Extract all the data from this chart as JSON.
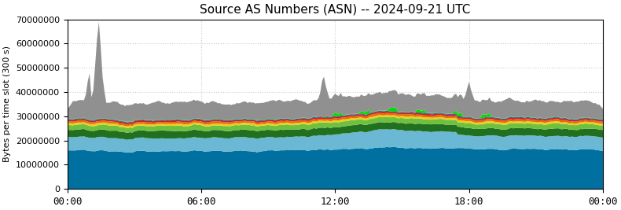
{
  "title": "Source AS Numbers (ASN) -- 2024-09-21 UTC",
  "ylabel": "Bytes per time slot (300 s)",
  "xlim": [
    0,
    288
  ],
  "ylim": [
    0,
    70000000
  ],
  "yticks": [
    0,
    10000000,
    20000000,
    30000000,
    40000000,
    50000000,
    60000000,
    70000000
  ],
  "xtick_labels": [
    "00:00",
    "06:00",
    "12:00",
    "18:00",
    "00:00"
  ],
  "xtick_positions": [
    0,
    72,
    144,
    216,
    288
  ],
  "colors": {
    "teal": "#0070A0",
    "lightblue": "#6BB8D4",
    "darkgreen": "#207020",
    "limegreen": "#70C040",
    "yellow": "#E8D020",
    "orange": "#E87000",
    "red": "#D02020",
    "blue": "#2020C0",
    "brightgreen": "#00DD00",
    "gray": "#909090"
  },
  "background_color": "#ffffff",
  "grid_color": "#cccccc"
}
